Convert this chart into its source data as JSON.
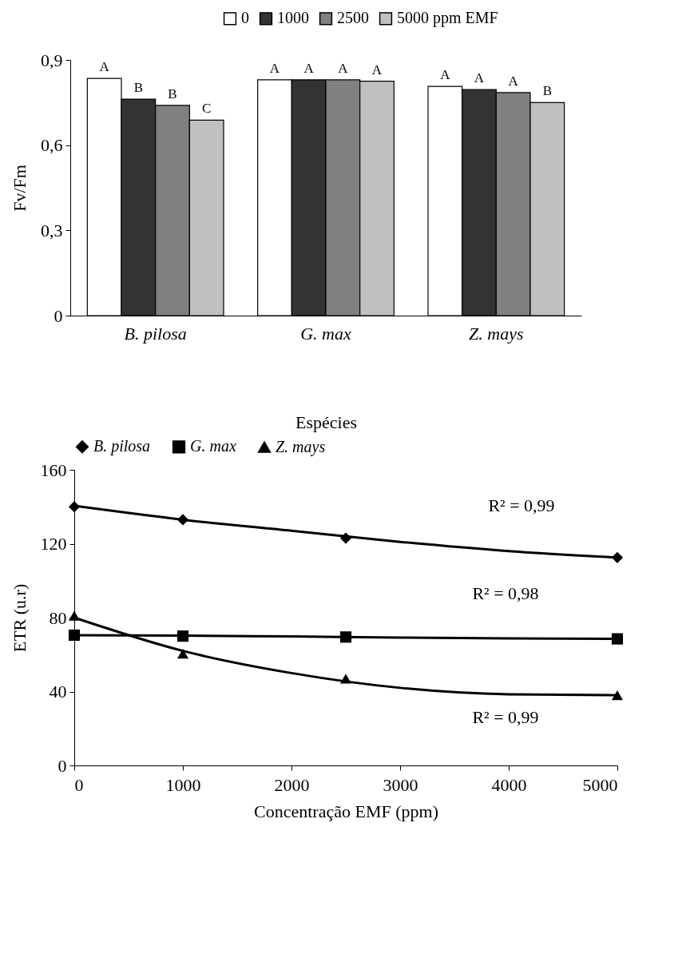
{
  "chart_data": [
    {
      "type": "bar",
      "xlabel": "Espécies",
      "ylabel": "Fv/Fm",
      "categories": [
        "B. pilosa",
        "G. max",
        "Z. mays"
      ],
      "series": [
        {
          "name": "0",
          "color": "#ffffff",
          "values": [
            0.835,
            0.83,
            0.807
          ],
          "value_labels": [
            "A",
            "A",
            "A"
          ]
        },
        {
          "name": "1000",
          "color": "#333333",
          "values": [
            0.762,
            0.83,
            0.796
          ],
          "value_labels": [
            "B",
            "A",
            "A"
          ]
        },
        {
          "name": "2500",
          "color": "#808080",
          "values": [
            0.74,
            0.83,
            0.785
          ],
          "value_labels": [
            "B",
            "A",
            "A"
          ]
        },
        {
          "name": "5000 ppm EMF",
          "color": "#c0c0c0",
          "values": [
            0.688,
            0.825,
            0.75
          ],
          "value_labels": [
            "C",
            "A",
            "B"
          ]
        }
      ],
      "ylim": [
        0,
        0.9
      ],
      "yticks": [
        0,
        {
          "value": 0.3,
          "label": "0,3"
        },
        {
          "value": 0.6,
          "label": "0,6"
        },
        {
          "value": 0.9,
          "label": "0,9"
        }
      ],
      "grid": false,
      "legend": "top right"
    },
    {
      "type": "scatter",
      "xlabel": "Concentração EMF (ppm)",
      "ylabel": "ETR (u.r)",
      "series": [
        {
          "name": "B. pilosa",
          "type": "scatter",
          "marker": "diamond",
          "color": "#000000",
          "x": [
            0,
            1000,
            2500,
            5000
          ],
          "values": [
            140,
            133,
            123,
            112.5
          ]
        },
        {
          "name": "G. max",
          "type": "scatter",
          "marker": "square",
          "color": "#000000",
          "x": [
            0,
            1000,
            2500,
            5000
          ],
          "values": [
            70.5,
            70,
            69.5,
            68.5
          ]
        },
        {
          "name": "Z. mays",
          "type": "scatter",
          "marker": "triangle",
          "color": "#000000",
          "x": [
            0,
            1000,
            2500,
            5000
          ],
          "values": [
            81,
            60.5,
            47,
            38
          ]
        },
        {
          "type": "line",
          "color": "#000000",
          "x": [
            0,
            1000,
            2000,
            3000,
            4000,
            5000
          ],
          "values": [
            140.5,
            133,
            127,
            121,
            116,
            112.5
          ]
        },
        {
          "type": "line",
          "color": "#000000",
          "x": [
            0,
            1000,
            2000,
            3000,
            4000,
            5000
          ],
          "values": [
            70.5,
            70.3,
            69.8,
            69.2,
            68.8,
            68.5
          ]
        },
        {
          "type": "line",
          "color": "#000000",
          "x": [
            0,
            1000,
            2000,
            3000,
            4000,
            5000
          ],
          "values": [
            80,
            62,
            50,
            42,
            38.5,
            38
          ]
        }
      ],
      "annotations": [
        "R² = 0,99",
        "R² = 0,98",
        "R² = 0,99"
      ],
      "xlim": [
        0,
        5000
      ],
      "xticks": [
        0,
        1000,
        2000,
        3000,
        4000,
        5000
      ],
      "ylim": [
        0,
        160
      ],
      "yticks": [
        0,
        40,
        80,
        120,
        160
      ],
      "grid": false,
      "legend": "top",
      "line_style": "solid"
    }
  ]
}
